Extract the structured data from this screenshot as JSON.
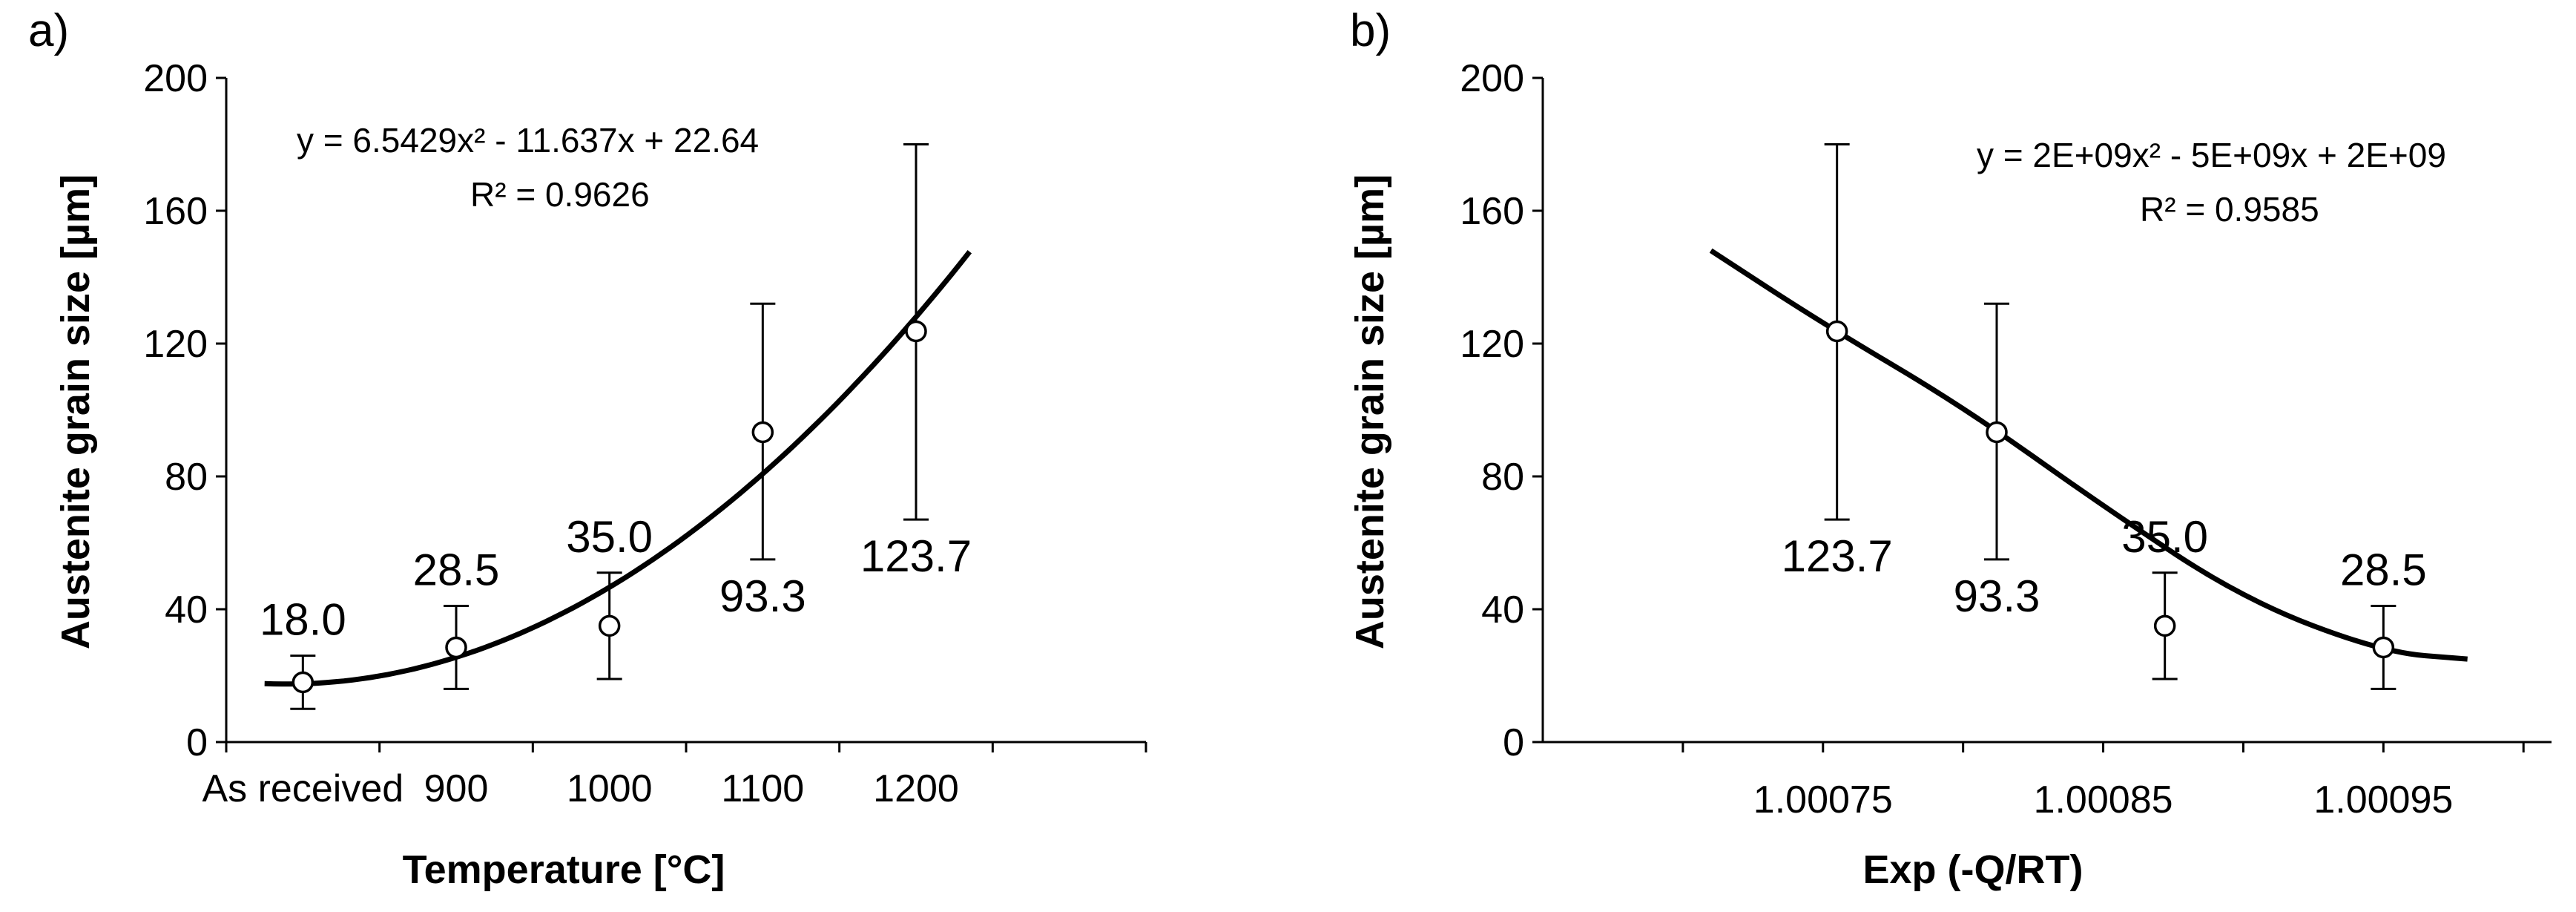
{
  "chart_data": [
    {
      "panel_label": "a)",
      "type": "scatter",
      "xlabel": "Temperature [°C]",
      "ylabel": "Austenite grain size [µm]",
      "ylim": [
        0,
        200
      ],
      "yticks": [
        "0",
        "40",
        "80",
        "120",
        "160",
        "200"
      ],
      "categories": [
        "As received",
        "900",
        "1000",
        "1100",
        "1200"
      ],
      "values": [
        18.0,
        28.5,
        35.0,
        93.3,
        123.7
      ],
      "error_bars": [
        [
          10,
          26
        ],
        [
          16,
          41
        ],
        [
          19,
          51
        ],
        [
          55,
          132
        ],
        [
          67,
          180
        ]
      ],
      "data_labels": [
        "18.0",
        "28.5",
        "35.0",
        "93.3",
        "123.7"
      ],
      "data_label_positions": [
        "above",
        "above",
        "above",
        "below",
        "below"
      ],
      "trendline": {
        "type": "polynomial",
        "x_start": 0.75,
        "x_end": 5.35,
        "coefficients": [
          6.5429,
          -11.637,
          22.64
        ],
        "equation": "y = 6.5429x² - 11.637x + 22.64",
        "r2": "R² = 0.9626"
      }
    },
    {
      "panel_label": "b)",
      "type": "scatter",
      "xlabel": "Exp (-Q/RT)",
      "ylabel": "Austenite grain size [µm]",
      "ylim": [
        0,
        200
      ],
      "xlim": [
        1.00065,
        1.00101
      ],
      "yticks": [
        "0",
        "40",
        "80",
        "120",
        "160",
        "200"
      ],
      "xticks": [
        "1.00075",
        "1.00085",
        "1.00095"
      ],
      "x": [
        1.000755,
        1.000812,
        1.000872,
        1.00095
      ],
      "values": [
        123.7,
        93.3,
        35.0,
        28.5
      ],
      "error_bars": [
        [
          67,
          180
        ],
        [
          55,
          132
        ],
        [
          19,
          51
        ],
        [
          16,
          41
        ]
      ],
      "data_labels": [
        "123.7",
        "93.3",
        "35.0",
        "28.5"
      ],
      "data_label_positions": [
        "below",
        "below",
        "above",
        "above"
      ],
      "trendline": {
        "type": "polynomial",
        "curve_points": [
          [
            1.00071,
            148
          ],
          [
            1.00075,
            126
          ],
          [
            1.0008,
            101
          ],
          [
            1.00085,
            71
          ],
          [
            1.0009,
            43
          ],
          [
            1.00095,
            27
          ],
          [
            1.00098,
            25
          ]
        ],
        "equation": "y = 2E+09x² - 5E+09x + 2E+09",
        "r2": "R² = 0.9585"
      }
    }
  ]
}
